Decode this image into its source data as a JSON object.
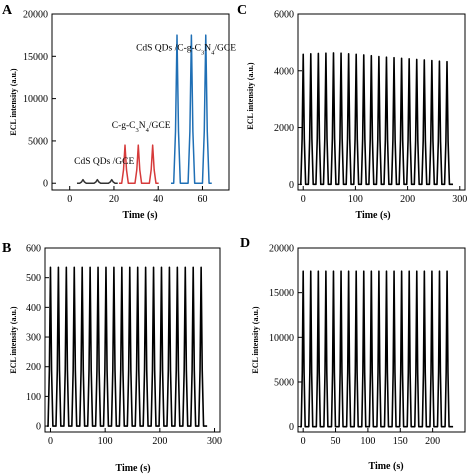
{
  "chart_data": [
    {
      "panel": "A",
      "type": "line",
      "xlabel": "Time (s)",
      "ylabel": "ECL intensity (a.u.)",
      "xlim": [
        -8,
        72
      ],
      "ylim": [
        -800,
        20000
      ],
      "xticks": [
        0,
        20,
        40,
        60
      ],
      "yticks": [
        0,
        5000,
        10000,
        15000,
        20000
      ],
      "series": [
        {
          "name": "CdS QDs /GCE",
          "color": "#333333",
          "width": 1.5,
          "peaks_x": [
            6,
            12.5,
            19
          ],
          "peak_value": 420
        },
        {
          "name": "C-g-C3N4/GCE",
          "color": "#d63a3a",
          "width": 1.5,
          "peaks_x": [
            25,
            31,
            37.5
          ],
          "peak_value": 4500
        },
        {
          "name": "CdS QDs /C-g-C3N4/GCE",
          "color": "#1f6fb5",
          "width": 1.5,
          "peaks_x": [
            48.5,
            55,
            61.5
          ],
          "peak_value": 17500
        }
      ],
      "annotations": [
        {
          "parts": [
            {
              "t": "CdS QDs /GCE"
            }
          ],
          "x": 2,
          "y": 2300
        },
        {
          "parts": [
            {
              "t": "C-g-C"
            },
            {
              "t": "3",
              "sub": true
            },
            {
              "t": "N"
            },
            {
              "t": "4",
              "sub": true
            },
            {
              "t": "/GCE"
            }
          ],
          "x": 19,
          "y": 6500
        },
        {
          "parts": [
            {
              "t": "CdS QDs /C-g-C"
            },
            {
              "t": "3",
              "sub": true
            },
            {
              "t": "N"
            },
            {
              "t": "4",
              "sub": true
            },
            {
              "t": "/GCE"
            }
          ],
          "x": 30,
          "y": 15700
        }
      ]
    },
    {
      "panel": "C",
      "type": "line",
      "xlabel": "Time (s)",
      "ylabel": "ECL intensity (a.u.)",
      "xlim": [
        -10,
        310
      ],
      "ylim": [
        -200,
        6000
      ],
      "xticks": [
        0,
        100,
        200,
        300
      ],
      "yticks": [
        0,
        2000,
        4000,
        6000
      ],
      "series": [
        {
          "color": "#000000",
          "width": 1.6,
          "peaks_x": [
            0,
            14.5,
            29,
            43.5,
            58,
            72.5,
            87,
            101.5,
            116,
            130.5,
            145,
            159.5,
            174,
            188.5,
            203,
            217.5,
            232,
            246.5,
            261,
            275.5
          ],
          "values": [
            4580,
            4600,
            4610,
            4620,
            4630,
            4620,
            4600,
            4580,
            4560,
            4530,
            4500,
            4480,
            4460,
            4440,
            4420,
            4400,
            4380,
            4360,
            4340,
            4320
          ]
        }
      ]
    },
    {
      "panel": "B",
      "type": "line",
      "xlabel": "Time (s)",
      "ylabel": "ECL intensity (a.u.)",
      "xlim": [
        -10,
        310
      ],
      "ylim": [
        -20,
        600
      ],
      "xticks": [
        0,
        100,
        200,
        300
      ],
      "yticks": [
        0,
        100,
        200,
        300,
        400,
        500,
        600
      ],
      "series": [
        {
          "color": "#000000",
          "width": 1.6,
          "peaks_x": [
            0,
            14.5,
            29,
            43.5,
            58,
            72.5,
            87,
            101.5,
            116,
            130.5,
            145,
            159.5,
            174,
            188.5,
            203,
            217.5,
            232,
            246.5,
            261,
            275.5
          ],
          "peak_value": 535
        }
      ]
    },
    {
      "panel": "D",
      "type": "line",
      "xlabel": "Time (s)",
      "ylabel": "ECL intensity (a.u.)",
      "xlim": [
        -8,
        250
      ],
      "ylim": [
        -600,
        20000
      ],
      "xticks": [
        0,
        50,
        100,
        150,
        200
      ],
      "yticks": [
        0,
        5000,
        10000,
        15000,
        20000
      ],
      "series": [
        {
          "color": "#000000",
          "width": 1.6,
          "peaks_x": [
            0,
            11.7,
            23.4,
            35.1,
            46.8,
            58.5,
            70.2,
            81.9,
            93.6,
            105.3,
            117,
            128.7,
            140.4,
            152.1,
            163.8,
            175.5,
            187.2,
            198.9,
            210.6,
            222.3
          ],
          "peak_value": 17400
        }
      ]
    }
  ]
}
